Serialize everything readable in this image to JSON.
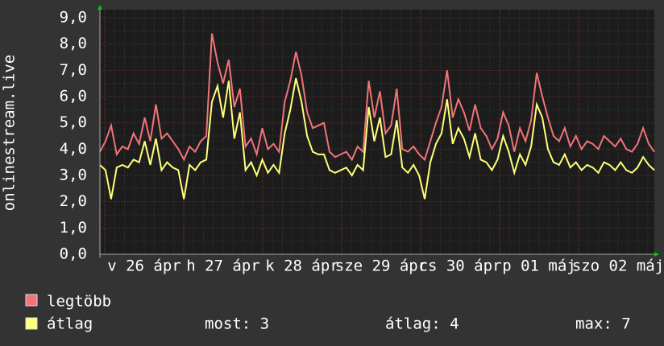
{
  "chart_data": {
    "type": "line",
    "y_label": "onlinestream.live",
    "x_tick_labels": [
      "v 26 ápr",
      "h 27 ápr",
      "k 28 ápr",
      "sze 29 ápr",
      "cs 30 ápr",
      "p 01 máj",
      "szo 02 máj"
    ],
    "ylim": [
      0,
      9
    ],
    "yticks": [
      {
        "value": 0,
        "label": "0,0"
      },
      {
        "value": 1,
        "label": "1,0"
      },
      {
        "value": 2,
        "label": "2,0"
      },
      {
        "value": 3,
        "label": "3,0"
      },
      {
        "value": 4,
        "label": "4,0"
      },
      {
        "value": 5,
        "label": "5,0"
      },
      {
        "value": 6,
        "label": "6,0"
      },
      {
        "value": 7,
        "label": "7,0"
      },
      {
        "value": 8,
        "label": "8,0"
      },
      {
        "value": 9,
        "label": "9,0"
      }
    ],
    "grid": true,
    "series": [
      {
        "name": "legtöbb",
        "color": "#f07478",
        "values": [
          3.9,
          4.3,
          4.9,
          3.8,
          4.1,
          4.0,
          4.6,
          4.2,
          5.2,
          4.3,
          5.7,
          4.4,
          4.6,
          4.3,
          4.0,
          3.6,
          4.1,
          3.9,
          4.3,
          4.5,
          8.4,
          7.3,
          6.5,
          7.4,
          5.6,
          6.3,
          4.1,
          4.4,
          3.8,
          4.8,
          4.0,
          4.2,
          3.9,
          5.8,
          6.6,
          7.7,
          6.8,
          5.4,
          4.8,
          4.9,
          5.0,
          3.9,
          3.7,
          3.8,
          3.9,
          3.6,
          4.1,
          3.9,
          6.6,
          5.2,
          6.2,
          4.6,
          4.9,
          6.3,
          4.0,
          3.9,
          4.1,
          3.8,
          3.6,
          4.3,
          5.0,
          5.6,
          7.0,
          5.2,
          5.9,
          5.4,
          4.7,
          5.7,
          4.8,
          4.5,
          4.0,
          4.4,
          5.4,
          4.9,
          3.9,
          4.8,
          4.3,
          5.1,
          6.9,
          6.0,
          5.2,
          4.5,
          4.3,
          4.8,
          4.1,
          4.5,
          4.0,
          4.3,
          4.2,
          4.0,
          4.5,
          4.3,
          4.1,
          4.4,
          4.0,
          3.9,
          4.2,
          4.8,
          4.2,
          3.9
        ]
      },
      {
        "name": "átlag",
        "color": "#ffff78",
        "values": [
          3.4,
          3.2,
          2.1,
          3.3,
          3.4,
          3.3,
          3.6,
          3.5,
          4.3,
          3.4,
          4.4,
          3.2,
          3.5,
          3.3,
          3.2,
          2.1,
          3.4,
          3.2,
          3.5,
          3.6,
          5.8,
          6.4,
          5.2,
          6.6,
          4.4,
          5.4,
          3.2,
          3.5,
          3.0,
          3.6,
          3.1,
          3.4,
          3.1,
          4.6,
          5.5,
          6.7,
          5.8,
          4.5,
          3.9,
          3.8,
          3.8,
          3.2,
          3.1,
          3.2,
          3.3,
          3.0,
          3.4,
          3.2,
          5.6,
          4.3,
          5.2,
          3.7,
          3.8,
          5.1,
          3.3,
          3.1,
          3.4,
          3.0,
          2.1,
          3.5,
          4.2,
          4.6,
          5.9,
          4.2,
          4.8,
          4.4,
          3.7,
          4.6,
          3.6,
          3.5,
          3.2,
          3.6,
          4.5,
          3.9,
          3.1,
          3.8,
          3.4,
          4.1,
          5.7,
          5.2,
          4.0,
          3.5,
          3.4,
          3.8,
          3.3,
          3.5,
          3.2,
          3.4,
          3.3,
          3.1,
          3.5,
          3.4,
          3.2,
          3.5,
          3.2,
          3.1,
          3.3,
          3.7,
          3.4,
          3.2
        ]
      }
    ],
    "stats": [
      "most: 3",
      "átlag: 4",
      "max: 7"
    ]
  }
}
